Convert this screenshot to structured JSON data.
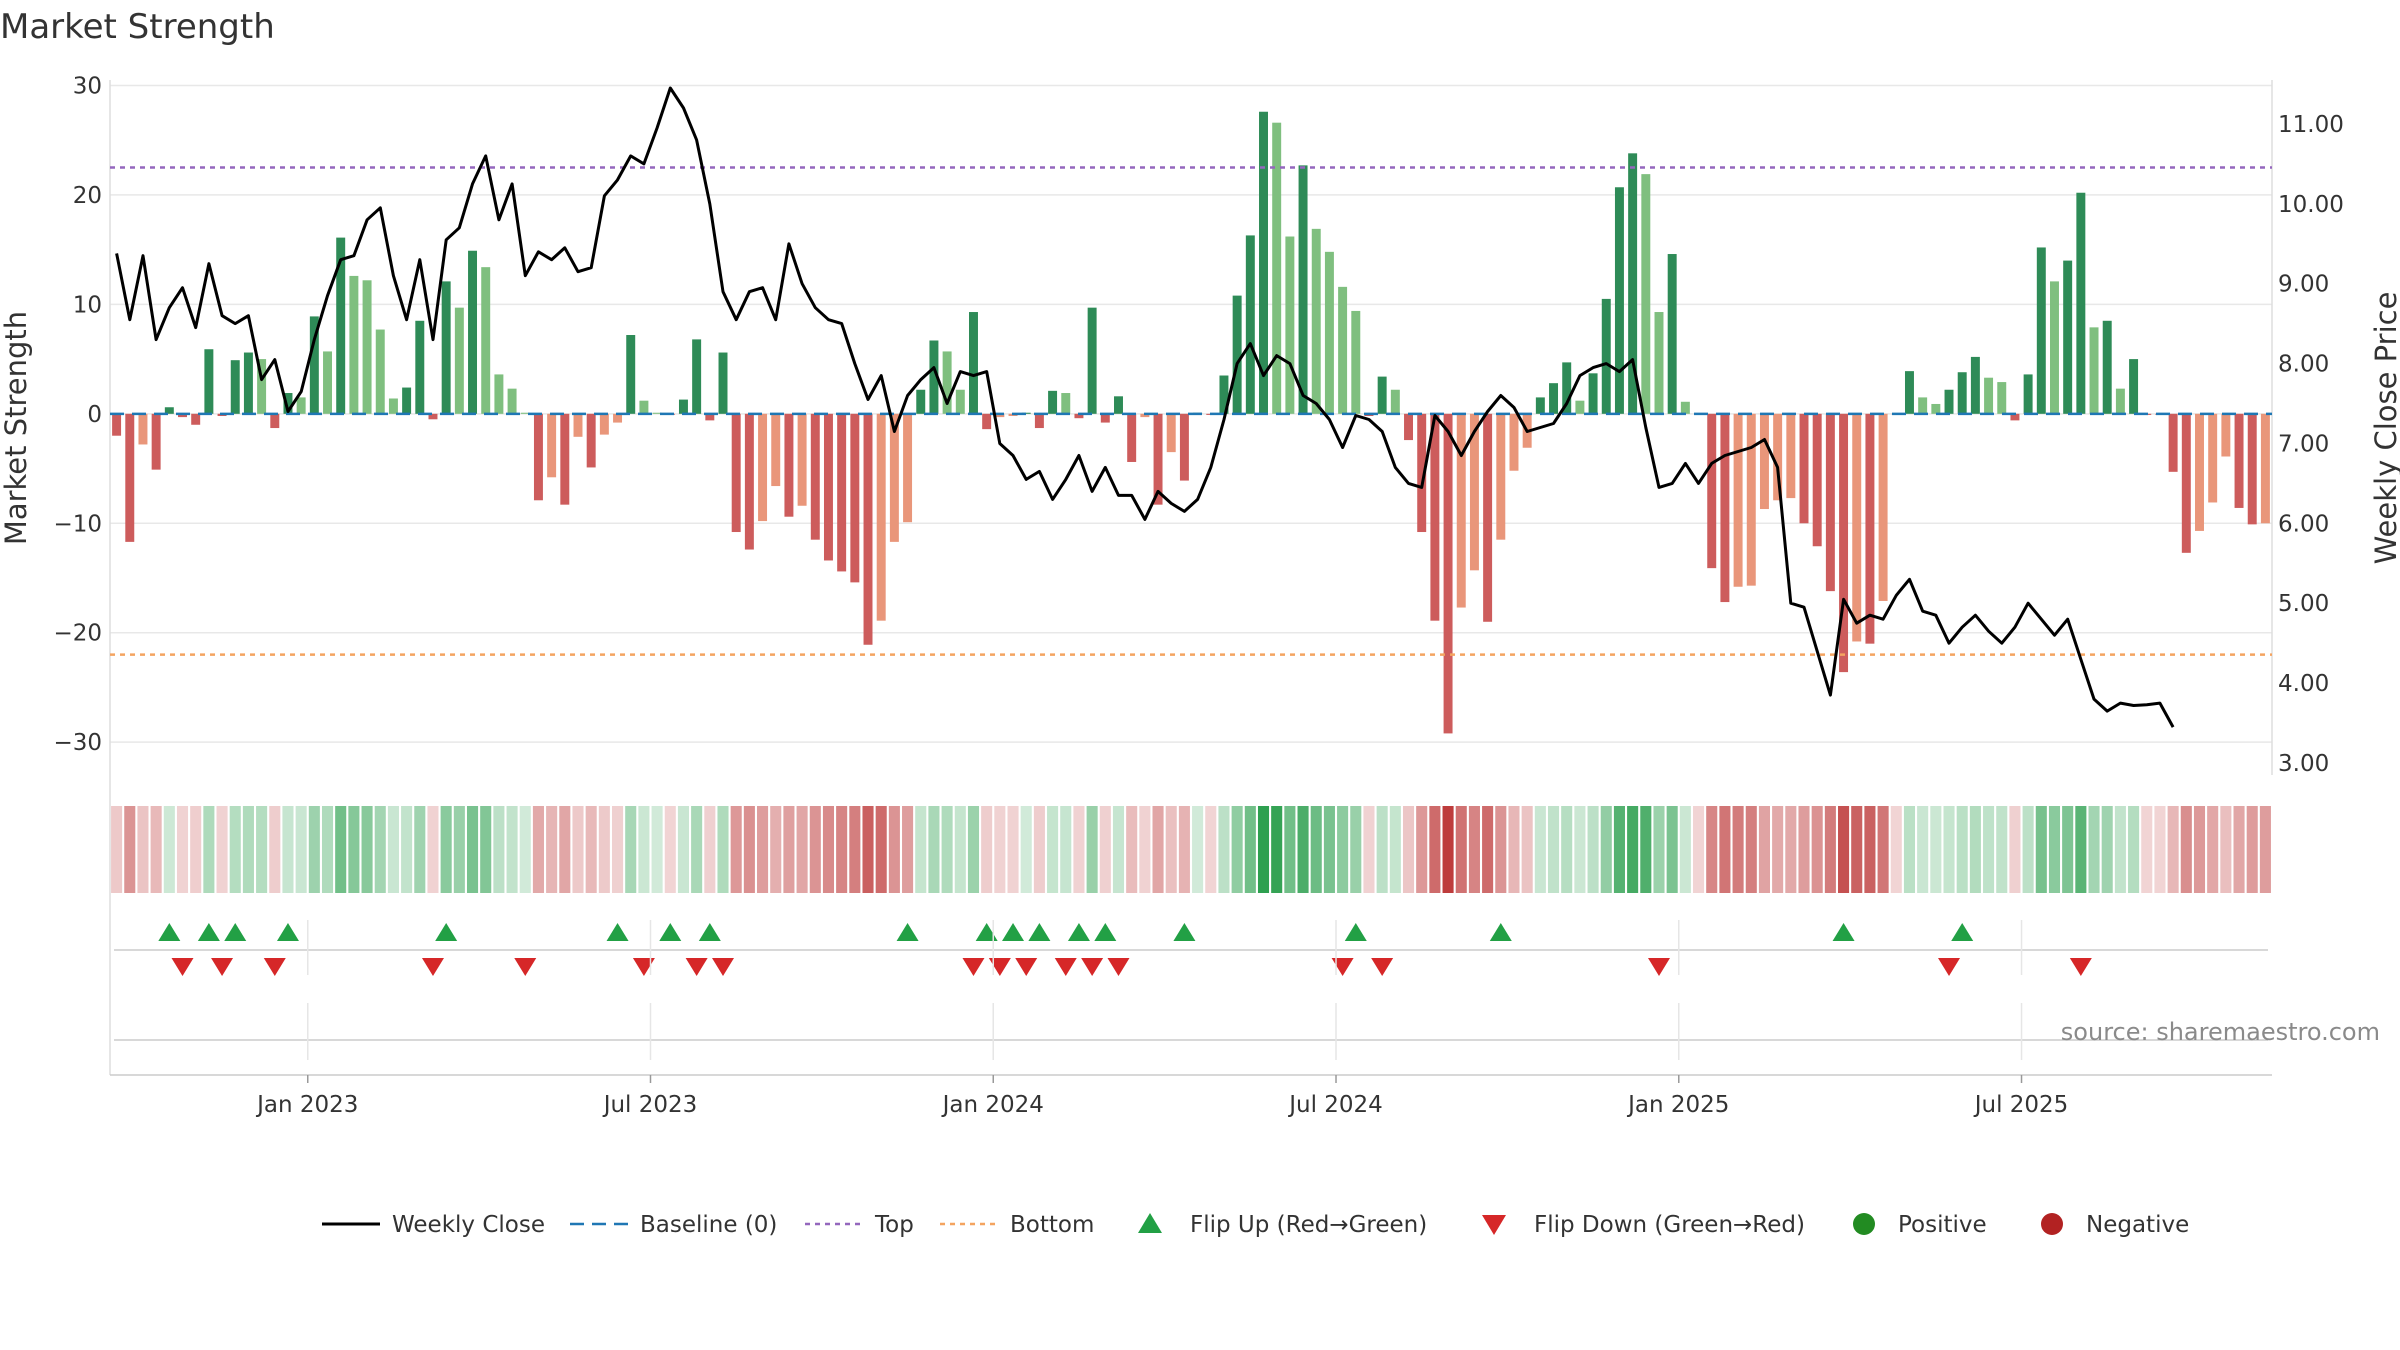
{
  "chart_data": {
    "type": "bar",
    "title": "Market Strength",
    "ylabel": "Market Strength",
    "y2label": "Weekly Close Price",
    "ylim": [
      -33,
      30.5
    ],
    "y2lim": [
      2.85,
      11.55
    ],
    "yticks": [
      30,
      20,
      10,
      0,
      -10,
      -20,
      -30
    ],
    "yticklabels": [
      "30",
      "20",
      "10",
      "0",
      "−10",
      "−20",
      "−30"
    ],
    "y2ticks": [
      11,
      10,
      9,
      8,
      7,
      6,
      5,
      4,
      3
    ],
    "y2ticklabels": [
      "11.00",
      "10.00",
      "9.00",
      "8.00",
      "7.00",
      "6.00",
      "5.00",
      "4.00",
      "3.00"
    ],
    "xticks": [
      {
        "week": 15,
        "label": "Jan 2023"
      },
      {
        "week": 41,
        "label": "Jul 2023"
      },
      {
        "week": 67,
        "label": "Jan 2024"
      },
      {
        "week": 93,
        "label": "Jul 2024"
      },
      {
        "week": 119,
        "label": "Jan 2025"
      },
      {
        "week": 145,
        "label": "Jul 2025"
      }
    ],
    "thresholds": {
      "top": 22.5,
      "bottom": -22,
      "baseline": 0
    },
    "strength": [
      -2,
      -11.7,
      -2.8,
      -5.1,
      0.6,
      -0.3,
      -1,
      5.9,
      -0.2,
      4.9,
      5.6,
      5,
      -1.3,
      1.9,
      1.5,
      8.9,
      5.7,
      16.1,
      12.6,
      12.2,
      7.7,
      1.4,
      2.4,
      8.5,
      -0.5,
      12.1,
      9.7,
      14.9,
      13.4,
      3.6,
      2.3,
      0.1,
      -7.9,
      -5.8,
      -8.3,
      -2.1,
      -4.9,
      -1.9,
      -0.8,
      7.2,
      1.2,
      0.1,
      -0.1,
      1.3,
      6.8,
      -0.6,
      5.6,
      -10.8,
      -12.4,
      -9.8,
      -6.6,
      -9.4,
      -8.4,
      -11.5,
      -13.4,
      -14.4,
      -15.4,
      -21.1,
      -18.9,
      -11.7,
      -9.9,
      2.2,
      6.7,
      5.7,
      2.2,
      9.3,
      -1.4,
      -0.3,
      -0.2,
      0.1,
      -1.3,
      2.1,
      1.9,
      -0.4,
      9.7,
      -0.8,
      1.6,
      -4.4,
      -0.3,
      -8.3,
      -3.5,
      -6.1,
      0.1,
      -0.1,
      3.5,
      10.8,
      16.3,
      27.6,
      26.6,
      16.2,
      22.7,
      16.9,
      14.8,
      11.6,
      9.4,
      -0.2,
      3.4,
      2.2,
      -2.4,
      -10.8,
      -18.9,
      -29.2,
      -17.7,
      -14.3,
      -19,
      -11.5,
      -5.2,
      -3.1,
      1.5,
      2.8,
      4.7,
      1.2,
      3.7,
      10.5,
      20.7,
      23.8,
      21.9,
      9.3,
      14.6,
      1.1,
      -0.1,
      -14.1,
      -17.2,
      -15.8,
      -15.7,
      -8.7,
      -7.9,
      -7.7,
      -10,
      -12.1,
      -16.2,
      -23.6,
      -20.8,
      -21,
      -17.1,
      -0.1,
      3.9,
      1.5,
      0.9,
      2.2,
      3.8,
      5.2,
      3.3,
      2.9,
      -0.6,
      3.6,
      15.2,
      12.1,
      14,
      20.2,
      7.9,
      8.5,
      2.3,
      5,
      -0.1,
      -0.1,
      -5.3,
      -12.7,
      -10.7,
      -8.1,
      -3.9,
      -8.6,
      -10.1,
      -10
    ],
    "weekly_close": [
      9.38,
      8.55,
      9.35,
      8.3,
      8.7,
      8.95,
      8.45,
      9.25,
      8.6,
      8.5,
      8.6,
      7.8,
      8.05,
      7.4,
      7.65,
      8.3,
      8.85,
      9.3,
      9.35,
      9.8,
      9.95,
      9.1,
      8.55,
      9.3,
      8.3,
      9.55,
      9.7,
      10.25,
      10.6,
      9.8,
      10.25,
      9.1,
      9.4,
      9.3,
      9.45,
      9.15,
      9.2,
      10.1,
      10.3,
      10.6,
      10.5,
      10.95,
      11.45,
      11.2,
      10.8,
      10.0,
      8.9,
      8.55,
      8.9,
      8.95,
      8.55,
      9.5,
      9.0,
      8.7,
      8.55,
      8.5,
      8.0,
      7.55,
      7.85,
      7.15,
      7.6,
      7.8,
      7.95,
      7.5,
      7.9,
      7.85,
      7.9,
      7.0,
      6.85,
      6.55,
      6.65,
      6.3,
      6.55,
      6.85,
      6.4,
      6.7,
      6.35,
      6.35,
      6.05,
      6.4,
      6.25,
      6.15,
      6.3,
      6.7,
      7.3,
      8.0,
      8.25,
      7.85,
      8.1,
      8.0,
      7.6,
      7.5,
      7.3,
      6.95,
      7.35,
      7.3,
      7.15,
      6.7,
      6.5,
      6.45,
      7.35,
      7.15,
      6.85,
      7.15,
      7.4,
      7.6,
      7.45,
      7.15,
      7.2,
      7.25,
      7.5,
      7.85,
      7.95,
      8.0,
      7.9,
      8.05,
      7.2,
      6.45,
      6.5,
      6.75,
      6.5,
      6.75,
      6.85,
      6.9,
      6.95,
      7.05,
      6.7,
      5.0,
      4.95,
      4.4,
      3.85,
      5.05,
      4.75,
      4.85,
      4.8,
      5.1,
      5.3,
      4.9,
      4.85,
      4.5,
      4.7,
      4.85,
      4.65,
      4.5,
      4.7,
      5.0,
      4.8,
      4.6,
      4.8,
      4.3,
      3.8,
      3.65,
      3.75,
      3.72,
      3.73,
      3.75,
      3.45
    ],
    "flips_up": [
      4,
      7,
      9,
      13,
      25,
      38,
      42,
      45,
      60,
      66,
      68,
      70,
      73,
      75,
      81,
      94,
      105,
      131,
      140
    ],
    "flips_down": [
      5,
      8,
      12,
      24,
      31,
      40,
      44,
      46,
      65,
      67,
      69,
      72,
      74,
      76,
      93,
      96,
      117,
      139,
      149
    ],
    "legend": [
      {
        "key": "close",
        "label": "Weekly Close",
        "color": "#000000"
      },
      {
        "key": "baseline",
        "label": "Baseline (0)",
        "color": "#1f77b4"
      },
      {
        "key": "top",
        "label": "Top",
        "color": "#9467bd"
      },
      {
        "key": "bottom",
        "label": "Bottom",
        "color": "#f4a460"
      },
      {
        "key": "flip-up",
        "label": "Flip Up (Red→Green)",
        "color": "#22a045"
      },
      {
        "key": "flip-down",
        "label": "Flip Down (Green→Red)",
        "color": "#d62728"
      },
      {
        "key": "positive",
        "label": "Positive",
        "color": "#228b22"
      },
      {
        "key": "negative",
        "label": "Negative",
        "color": "#b22222"
      }
    ]
  },
  "source": "source: sharemaestro.com",
  "colors": {
    "pos_strong": "#2e8b57",
    "pos_light": "#7fbf7f",
    "neg_strong": "#cd5c5c",
    "neg_light": "#e9967a",
    "close_line": "#000000",
    "grid": "#e8e8e8"
  }
}
